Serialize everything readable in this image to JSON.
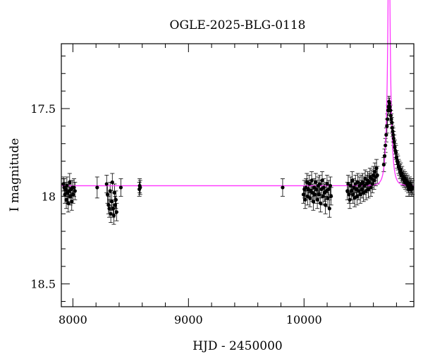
{
  "chart_data": {
    "type": "scatter",
    "title": "OGLE-2025-BLG-0118",
    "xlabel": "HJD - 2450000",
    "ylabel": "I magnitude",
    "xlim": [
      7900,
      10950
    ],
    "ylim": [
      18.63,
      17.13
    ],
    "y_inverted": true,
    "xticks": [
      8000,
      9000,
      10000
    ],
    "xtick_labels": [
      "8000",
      "9000",
      "10000"
    ],
    "yticks": [
      17.5,
      18,
      18.5
    ],
    "ytick_labels": [
      "17.5",
      "18",
      "18.5"
    ],
    "colors": {
      "points": "#000000",
      "errorbars": "#000000",
      "model": "#ff33ff"
    },
    "model": {
      "name": "",
      "baseline": 17.94,
      "t0": 10735,
      "u0": 0.14,
      "tE": 32,
      "blend_fraction": 0.63
    },
    "series": [
      {
        "name": "",
        "points": [
          [
            7918,
            17.93,
            0.04
          ],
          [
            7925,
            17.95,
            0.05
          ],
          [
            7931,
            17.99,
            0.05
          ],
          [
            7937,
            17.96,
            0.04
          ],
          [
            7943,
            18.02,
            0.05
          ],
          [
            7948,
            17.94,
            0.05
          ],
          [
            7954,
            17.98,
            0.05
          ],
          [
            7960,
            18.04,
            0.05
          ],
          [
            7966,
            17.97,
            0.04
          ],
          [
            7972,
            17.92,
            0.05
          ],
          [
            7978,
            18.0,
            0.05
          ],
          [
            7984,
            17.96,
            0.05
          ],
          [
            7990,
            18.03,
            0.05
          ],
          [
            7996,
            17.95,
            0.04
          ],
          [
            8002,
            17.99,
            0.05
          ],
          [
            8010,
            17.95,
            0.05
          ],
          [
            8018,
            17.97,
            0.05
          ],
          [
            8210,
            17.95,
            0.06
          ],
          [
            8292,
            17.93,
            0.05
          ],
          [
            8300,
            17.99,
            0.05
          ],
          [
            8308,
            18.05,
            0.05
          ],
          [
            8315,
            18.07,
            0.05
          ],
          [
            8322,
            17.97,
            0.05
          ],
          [
            8328,
            18.1,
            0.05
          ],
          [
            8335,
            18.03,
            0.05
          ],
          [
            8341,
            17.92,
            0.05
          ],
          [
            8348,
            18.07,
            0.05
          ],
          [
            8354,
            18.11,
            0.05
          ],
          [
            8360,
            17.98,
            0.05
          ],
          [
            8366,
            18.05,
            0.05
          ],
          [
            8372,
            18.02,
            0.05
          ],
          [
            8378,
            18.09,
            0.05
          ],
          [
            8415,
            17.95,
            0.05
          ],
          [
            8575,
            17.96,
            0.04
          ],
          [
            8578,
            17.94,
            0.04
          ],
          [
            8582,
            17.95,
            0.04
          ],
          [
            9815,
            17.95,
            0.05
          ],
          [
            9995,
            17.99,
            0.05
          ],
          [
            10003,
            17.96,
            0.05
          ],
          [
            10010,
            18.02,
            0.05
          ],
          [
            10017,
            17.95,
            0.05
          ],
          [
            10024,
            17.92,
            0.05
          ],
          [
            10031,
            18.0,
            0.05
          ],
          [
            10038,
            17.96,
            0.05
          ],
          [
            10045,
            17.93,
            0.05
          ],
          [
            10052,
            18.01,
            0.05
          ],
          [
            10059,
            17.97,
            0.05
          ],
          [
            10066,
            17.91,
            0.05
          ],
          [
            10073,
            17.98,
            0.05
          ],
          [
            10080,
            18.03,
            0.05
          ],
          [
            10087,
            17.95,
            0.05
          ],
          [
            10094,
            17.99,
            0.05
          ],
          [
            10101,
            17.92,
            0.05
          ],
          [
            10108,
            17.96,
            0.05
          ],
          [
            10115,
            18.02,
            0.05
          ],
          [
            10122,
            17.94,
            0.05
          ],
          [
            10129,
            17.99,
            0.05
          ],
          [
            10136,
            17.93,
            0.05
          ],
          [
            10143,
            18.04,
            0.05
          ],
          [
            10150,
            17.96,
            0.05
          ],
          [
            10157,
            17.91,
            0.05
          ],
          [
            10164,
            18.0,
            0.05
          ],
          [
            10171,
            17.95,
            0.05
          ],
          [
            10178,
            17.98,
            0.05
          ],
          [
            10185,
            18.05,
            0.05
          ],
          [
            10192,
            17.97,
            0.05
          ],
          [
            10199,
            17.93,
            0.05
          ],
          [
            10206,
            18.01,
            0.05
          ],
          [
            10213,
            17.96,
            0.05
          ],
          [
            10220,
            18.07,
            0.05
          ],
          [
            10227,
            17.94,
            0.05
          ],
          [
            10234,
            18.0,
            0.05
          ],
          [
            10375,
            17.97,
            0.05
          ],
          [
            10382,
            17.93,
            0.05
          ],
          [
            10389,
            17.99,
            0.05
          ],
          [
            10396,
            18.02,
            0.05
          ],
          [
            10403,
            17.94,
            0.05
          ],
          [
            10410,
            17.97,
            0.05
          ],
          [
            10417,
            17.91,
            0.05
          ],
          [
            10424,
            17.99,
            0.05
          ],
          [
            10431,
            17.95,
            0.05
          ],
          [
            10438,
            18.01,
            0.05
          ],
          [
            10445,
            17.93,
            0.05
          ],
          [
            10452,
            17.96,
            0.05
          ],
          [
            10459,
            18.0,
            0.05
          ],
          [
            10466,
            17.92,
            0.05
          ],
          [
            10473,
            17.97,
            0.05
          ],
          [
            10480,
            17.94,
            0.05
          ],
          [
            10487,
            17.99,
            0.05
          ],
          [
            10494,
            17.93,
            0.05
          ],
          [
            10501,
            17.96,
            0.05
          ],
          [
            10508,
            17.92,
            0.05
          ],
          [
            10515,
            17.98,
            0.05
          ],
          [
            10522,
            17.94,
            0.05
          ],
          [
            10529,
            17.9,
            0.05
          ],
          [
            10536,
            17.97,
            0.05
          ],
          [
            10543,
            17.93,
            0.05
          ],
          [
            10550,
            17.91,
            0.05
          ],
          [
            10557,
            17.96,
            0.05
          ],
          [
            10564,
            17.92,
            0.05
          ],
          [
            10571,
            17.89,
            0.05
          ],
          [
            10578,
            17.95,
            0.05
          ],
          [
            10585,
            17.9,
            0.05
          ],
          [
            10592,
            17.93,
            0.05
          ],
          [
            10599,
            17.88,
            0.05
          ],
          [
            10606,
            17.91,
            0.05
          ],
          [
            10613,
            17.86,
            0.05
          ],
          [
            10620,
            17.89,
            0.05
          ],
          [
            10627,
            17.84,
            0.05
          ],
          [
            10634,
            17.88,
            0.05
          ],
          [
            10690,
            17.82,
            0.04
          ],
          [
            10697,
            17.77,
            0.04
          ],
          [
            10704,
            17.71,
            0.04
          ],
          [
            10711,
            17.65,
            0.04
          ],
          [
            10717,
            17.6,
            0.04
          ],
          [
            10722,
            17.56,
            0.03
          ],
          [
            10727,
            17.51,
            0.03
          ],
          [
            10731,
            17.49,
            0.03
          ],
          [
            10735,
            17.46,
            0.03
          ],
          [
            10739,
            17.47,
            0.03
          ],
          [
            10743,
            17.49,
            0.03
          ],
          [
            10747,
            17.51,
            0.03
          ],
          [
            10751,
            17.54,
            0.03
          ],
          [
            10755,
            17.56,
            0.03
          ],
          [
            10759,
            17.58,
            0.03
          ],
          [
            10763,
            17.61,
            0.03
          ],
          [
            10767,
            17.63,
            0.03
          ],
          [
            10771,
            17.65,
            0.04
          ],
          [
            10775,
            17.67,
            0.04
          ],
          [
            10780,
            17.69,
            0.04
          ],
          [
            10785,
            17.72,
            0.04
          ],
          [
            10790,
            17.74,
            0.04
          ],
          [
            10795,
            17.75,
            0.04
          ],
          [
            10800,
            17.78,
            0.04
          ],
          [
            10806,
            17.8,
            0.04
          ],
          [
            10812,
            17.81,
            0.04
          ],
          [
            10818,
            17.83,
            0.04
          ],
          [
            10824,
            17.84,
            0.04
          ],
          [
            10830,
            17.86,
            0.04
          ],
          [
            10836,
            17.85,
            0.04
          ],
          [
            10842,
            17.88,
            0.04
          ],
          [
            10848,
            17.87,
            0.04
          ],
          [
            10854,
            17.9,
            0.04
          ],
          [
            10860,
            17.89,
            0.04
          ],
          [
            10866,
            17.91,
            0.04
          ],
          [
            10872,
            17.9,
            0.04
          ],
          [
            10878,
            17.92,
            0.04
          ],
          [
            10884,
            17.91,
            0.04
          ],
          [
            10890,
            17.93,
            0.04
          ],
          [
            10896,
            17.92,
            0.04
          ],
          [
            10902,
            17.94,
            0.04
          ],
          [
            10908,
            17.96,
            0.04
          ],
          [
            10914,
            17.93,
            0.04
          ],
          [
            10920,
            17.95,
            0.04
          ],
          [
            10926,
            17.94,
            0.04
          ],
          [
            10932,
            17.96,
            0.04
          ],
          [
            10938,
            17.95,
            0.04
          ]
        ]
      }
    ]
  }
}
